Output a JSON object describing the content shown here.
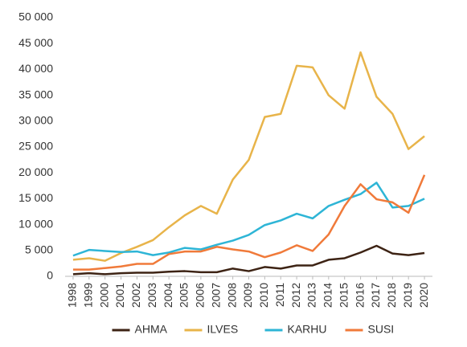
{
  "chart_data": {
    "type": "line",
    "categories": [
      "1998",
      "1999",
      "2000",
      "2001",
      "2002",
      "2003",
      "2004",
      "2005",
      "2006",
      "2007",
      "2008",
      "2009",
      "2010",
      "2011",
      "2012",
      "2013",
      "2014",
      "2015",
      "2016",
      "2017",
      "2018",
      "2019",
      "2020"
    ],
    "series": [
      {
        "name": "AHMA",
        "color": "#3d2314",
        "values": [
          400,
          600,
          400,
          600,
          700,
          700,
          900,
          1000,
          800,
          800,
          1500,
          1000,
          1800,
          1500,
          2100,
          2100,
          3200,
          3500,
          4600,
          5900,
          4400,
          4100,
          4500
        ]
      },
      {
        "name": "ILVES",
        "color": "#e8b44a",
        "values": [
          3200,
          3500,
          3000,
          4500,
          5700,
          7000,
          9500,
          11800,
          13600,
          12100,
          18700,
          22500,
          30800,
          31400,
          40700,
          40400,
          35000,
          32400,
          43300,
          34700,
          31400,
          24600,
          27100
        ]
      },
      {
        "name": "KARHU",
        "color": "#2eb5d6",
        "values": [
          4000,
          5100,
          4900,
          4700,
          4800,
          4100,
          4600,
          5500,
          5200,
          6100,
          6900,
          8000,
          9900,
          10800,
          12100,
          11200,
          13600,
          14800,
          15900,
          18100,
          13300,
          13600,
          15000
        ]
      },
      {
        "name": "SUSI",
        "color": "#f07a3a",
        "values": [
          1300,
          1300,
          1600,
          1900,
          2400,
          2400,
          4300,
          4800,
          4800,
          5700,
          5200,
          4800,
          3700,
          4600,
          6000,
          4900,
          8100,
          13600,
          17800,
          14900,
          14300,
          12300,
          19600
        ]
      }
    ],
    "ylim": [
      0,
      50000
    ],
    "yticks": [
      0,
      {
        "value": 5000,
        "label": "5 000"
      },
      {
        "value": 10000,
        "label": "10 000"
      },
      {
        "value": 15000,
        "label": "15 000"
      },
      {
        "value": 20000,
        "label": "20 000"
      },
      {
        "value": 25000,
        "label": "25 000"
      },
      {
        "value": 30000,
        "label": "30 000"
      },
      {
        "value": 35000,
        "label": "35 000"
      },
      {
        "value": 40000,
        "label": "40 000"
      },
      {
        "value": 45000,
        "label": "45 000"
      },
      {
        "value": 50000,
        "label": "50 000"
      }
    ],
    "grid": false,
    "legend": "bottom"
  }
}
